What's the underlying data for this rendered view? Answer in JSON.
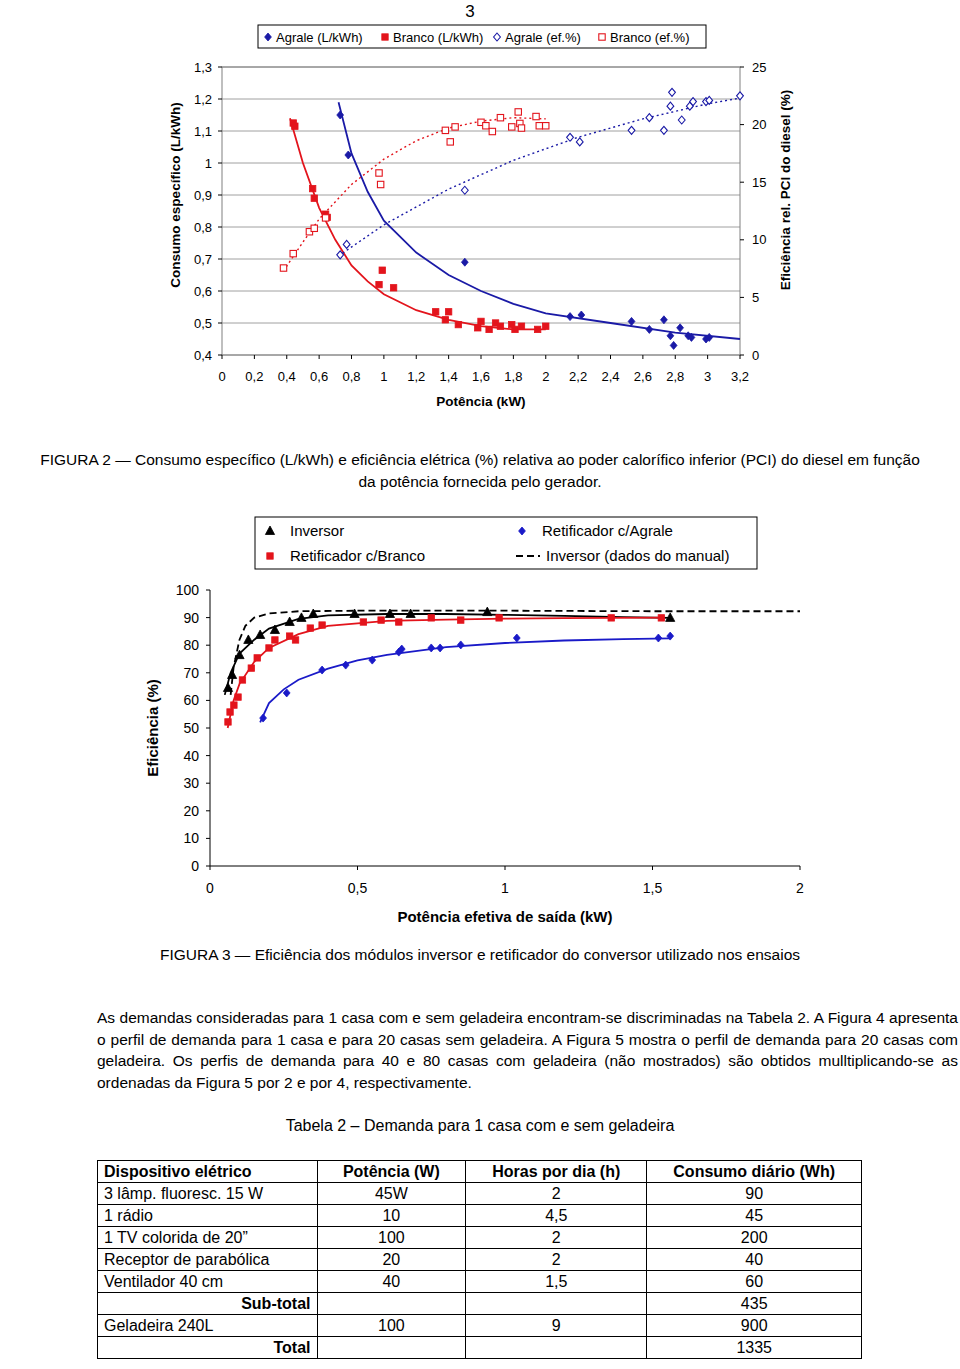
{
  "page_number": "3",
  "chart_data": [
    {
      "type": "scatter",
      "title": "FIGURA 2 — Consumo específico (L/kWh) e eficiência elétrica (%) relativa ao poder calorífico inferior (PCI) do diesel em função da potência fornecida pelo gerador.",
      "x_label": "Potência (kW)",
      "y_label": "Consumo específico (L/kWh)",
      "y2_label": "Eficiência rel. PCI do diesel (%)",
      "xlim": [
        0,
        3.2
      ],
      "xticks": [
        0,
        {
          "value": 0.2,
          "label": "0,2"
        },
        {
          "value": 0.4,
          "label": "0,4"
        },
        {
          "value": 0.6,
          "label": "0,6"
        },
        {
          "value": 0.8,
          "label": "0,8"
        },
        1,
        {
          "value": 1.2,
          "label": "1,2"
        },
        {
          "value": 1.4,
          "label": "1,4"
        },
        {
          "value": 1.6,
          "label": "1,6"
        },
        {
          "value": 1.8,
          "label": "1,8"
        },
        2,
        {
          "value": 2.2,
          "label": "2,2"
        },
        {
          "value": 2.4,
          "label": "2,4"
        },
        {
          "value": 2.6,
          "label": "2,6"
        },
        {
          "value": 2.8,
          "label": "2,8"
        },
        3,
        {
          "value": 3.2,
          "label": "3,2"
        }
      ],
      "ylim": [
        0.4,
        1.3
      ],
      "yticks": [
        {
          "value": 0.4,
          "label": "0,4"
        },
        {
          "value": 0.5,
          "label": "0,5"
        },
        {
          "value": 0.6,
          "label": "0,6"
        },
        {
          "value": 0.7,
          "label": "0,7"
        },
        {
          "value": 0.8,
          "label": "0,8"
        },
        {
          "value": 0.9,
          "label": "0,9"
        },
        1,
        {
          "value": 1.1,
          "label": "1,1"
        },
        {
          "value": 1.2,
          "label": "1,2"
        },
        {
          "value": 1.3,
          "label": "1,3"
        }
      ],
      "y2lim": [
        0,
        25
      ],
      "y2ticks": [
        0,
        5,
        10,
        15,
        20,
        25
      ],
      "grid": true,
      "legend": "top",
      "series": [
        {
          "name": "Agrale (L/kWh)",
          "type": "scatter",
          "color": "#1a1aa6",
          "marker": "diamond",
          "x": [
            0.73,
            0.78,
            1.5,
            2.15,
            2.22,
            2.53,
            2.64,
            2.73,
            2.77,
            2.79,
            2.83,
            2.88,
            2.9,
            2.99,
            3.01
          ],
          "values": [
            1.15,
            1.025,
            0.69,
            0.52,
            0.525,
            0.505,
            0.48,
            0.51,
            0.46,
            0.43,
            0.485,
            0.46,
            0.455,
            0.45,
            0.455
          ]
        },
        {
          "name": "Branco (L/kWh)",
          "type": "scatter",
          "color": "#e3141c",
          "marker": "square",
          "x": [
            0.44,
            0.45,
            0.56,
            0.57,
            0.64,
            0.65,
            0.97,
            0.99,
            1.06,
            1.32,
            1.4,
            1.38,
            1.46,
            1.58,
            1.6,
            1.65,
            1.69,
            1.72,
            1.79,
            1.81,
            1.85,
            1.95,
            2.0
          ],
          "values": [
            1.125,
            1.115,
            0.92,
            0.89,
            0.84,
            0.83,
            0.62,
            0.665,
            0.61,
            0.535,
            0.535,
            0.51,
            0.495,
            0.485,
            0.505,
            0.48,
            0.5,
            0.49,
            0.495,
            0.48,
            0.49,
            0.48,
            0.49
          ]
        },
        {
          "name": "Agrale (ef.%)",
          "type": "scatter",
          "color": "#1a1aa6",
          "marker": "diamond-open",
          "axis": "y2",
          "x": [
            0.73,
            0.77,
            1.5,
            2.15,
            2.21,
            2.53,
            2.64,
            2.73,
            2.77,
            2.78,
            2.84,
            2.89,
            2.91,
            2.99,
            3.01,
            3.2
          ],
          "values": [
            8.7,
            9.6,
            14.3,
            18.9,
            18.5,
            19.5,
            20.6,
            19.5,
            21.6,
            22.8,
            20.4,
            21.6,
            22.0,
            22.0,
            22.1,
            22.5
          ]
        },
        {
          "name": "Branco (ef.%)",
          "type": "scatter",
          "color": "#e3141c",
          "marker": "square-open",
          "axis": "y2",
          "x": [
            0.38,
            0.44,
            0.54,
            0.57,
            0.64,
            0.97,
            0.98,
            1.38,
            1.41,
            1.44,
            1.6,
            1.63,
            1.67,
            1.72,
            1.79,
            1.83,
            1.84,
            1.85,
            1.94,
            1.96,
            2.0
          ],
          "values": [
            7.55,
            8.8,
            10.7,
            11.0,
            11.9,
            15.8,
            14.8,
            19.5,
            18.5,
            19.8,
            20.2,
            19.9,
            19.4,
            20.6,
            19.8,
            21.1,
            20.1,
            19.7,
            20.7,
            19.9,
            19.9
          ]
        },
        {
          "type": "line",
          "color": "#1a1aa6",
          "line_style": "solid",
          "x": [
            0.72,
            0.8,
            0.9,
            1.0,
            1.2,
            1.4,
            1.6,
            1.8,
            2.0,
            2.4,
            2.8,
            3.2
          ],
          "values": [
            1.19,
            1.03,
            0.91,
            0.82,
            0.72,
            0.65,
            0.6,
            0.56,
            0.53,
            0.5,
            0.47,
            0.45
          ]
        },
        {
          "type": "line",
          "color": "#e3141c",
          "line_style": "solid",
          "x": [
            0.42,
            0.5,
            0.6,
            0.7,
            0.8,
            0.9,
            1.0,
            1.2,
            1.4,
            1.6,
            1.8,
            2.0
          ],
          "values": [
            1.14,
            1.0,
            0.86,
            0.76,
            0.68,
            0.63,
            0.59,
            0.54,
            0.51,
            0.49,
            0.48,
            0.48
          ]
        },
        {
          "type": "line",
          "color": "#1a1aa6",
          "line_style": "dotted",
          "axis": "y2",
          "x": [
            0.72,
            1.0,
            1.4,
            1.8,
            2.2,
            2.6,
            3.0,
            3.2
          ],
          "values": [
            8.6,
            11.3,
            14.4,
            16.9,
            18.9,
            20.5,
            21.8,
            22.3
          ]
        },
        {
          "type": "line",
          "color": "#e3141c",
          "line_style": "dotted",
          "axis": "y2",
          "x": [
            0.38,
            0.5,
            0.6,
            0.8,
            1.0,
            1.2,
            1.4,
            1.6,
            1.8,
            2.0
          ],
          "values": [
            7.3,
            9.8,
            11.8,
            14.8,
            17.0,
            18.6,
            19.7,
            20.3,
            20.6,
            20.5
          ]
        }
      ]
    },
    {
      "type": "scatter",
      "title": "FIGURA 3 — Eficiência dos módulos inversor e retificador do conversor utilizado nos ensaios",
      "x_label": "Potência efetiva de saída (kW)",
      "y_label": "Eficiência (%)",
      "xlim": [
        0,
        2
      ],
      "xticks": [
        0,
        {
          "value": 0.5,
          "label": "0,5"
        },
        1,
        {
          "value": 1.5,
          "label": "1,5"
        },
        2
      ],
      "ylim": [
        0,
        100
      ],
      "yticks": [
        0,
        10,
        20,
        30,
        40,
        50,
        60,
        70,
        80,
        90,
        100
      ],
      "grid": false,
      "legend": "top",
      "series": [
        {
          "name": "Inversor",
          "type": "scatter",
          "color": "#000000",
          "marker": "triangle",
          "x": [
            0.061,
            0.075,
            0.1,
            0.13,
            0.17,
            0.22,
            0.27,
            0.31,
            0.35,
            0.49,
            0.61,
            0.68,
            0.94,
            1.56
          ],
          "values": [
            64.5,
            69.2,
            76.4,
            81.9,
            83.7,
            85.5,
            88.4,
            89.9,
            91.3,
            91.3,
            91.3,
            91.3,
            92.0,
            89.9
          ]
        },
        {
          "name": "Retificador c/Agrale",
          "type": "scatter",
          "color": "#1a1ac8",
          "marker": "diamond",
          "x": [
            0.18,
            0.26,
            0.38,
            0.46,
            0.55,
            0.64,
            0.65,
            0.75,
            0.78,
            0.85,
            1.04,
            1.52,
            1.56
          ],
          "values": [
            53.6,
            62.7,
            71.0,
            72.8,
            74.6,
            77.5,
            78.6,
            79.0,
            79.0,
            80.1,
            82.6,
            82.6,
            83.3
          ]
        },
        {
          "name": "Retificador c/Branco",
          "type": "scatter",
          "color": "#e3141c",
          "marker": "square",
          "x": [
            0.061,
            0.068,
            0.081,
            0.095,
            0.11,
            0.14,
            0.16,
            0.2,
            0.22,
            0.27,
            0.29,
            0.34,
            0.38,
            0.52,
            0.58,
            0.64,
            0.75,
            0.85,
            0.98,
            1.36,
            1.53
          ],
          "values": [
            52.2,
            55.8,
            58.3,
            61.2,
            67.4,
            71.7,
            75.4,
            79.0,
            81.9,
            83.3,
            81.9,
            86.2,
            87.3,
            88.4,
            89.1,
            88.4,
            89.9,
            89.1,
            89.9,
            89.9,
            89.9
          ]
        },
        {
          "name": "Inversor (dados do manual)",
          "type": "line",
          "color": "#000000",
          "line_style": "dashed",
          "x": [
            0.07,
            0.08,
            0.1,
            0.12,
            0.15,
            0.2,
            0.3,
            0.5,
            1.0,
            1.5,
            2.0
          ],
          "values": [
            62,
            72,
            82,
            87,
            90,
            91.5,
            92.3,
            92.5,
            92.5,
            92.3,
            92.3
          ]
        },
        {
          "type": "line",
          "color": "#000000",
          "line_style": "solid",
          "x": [
            0.05,
            0.07,
            0.1,
            0.15,
            0.2,
            0.3,
            0.4,
            0.6,
            0.8,
            1.0,
            1.2,
            1.4,
            1.56
          ],
          "values": [
            62,
            70,
            77,
            82,
            86,
            89.5,
            90.8,
            91.3,
            91.3,
            91.0,
            90.6,
            90.2,
            89.9
          ]
        },
        {
          "type": "line",
          "color": "#1a1ac8",
          "line_style": "solid",
          "x": [
            0.17,
            0.2,
            0.25,
            0.3,
            0.4,
            0.5,
            0.6,
            0.8,
            1.0,
            1.2,
            1.4,
            1.56
          ],
          "values": [
            52,
            59,
            64,
            67.5,
            71.5,
            74.5,
            76.5,
            79.3,
            80.8,
            81.7,
            82.2,
            82.5
          ]
        },
        {
          "type": "line",
          "color": "#e3141c",
          "line_style": "solid",
          "x": [
            0.06,
            0.08,
            0.1,
            0.15,
            0.2,
            0.3,
            0.4,
            0.6,
            0.8,
            1.0,
            1.2,
            1.53
          ],
          "values": [
            50,
            60,
            66,
            74,
            79,
            84,
            87,
            88.8,
            89.3,
            89.6,
            89.8,
            90
          ]
        }
      ]
    }
  ],
  "paragraph": "As demandas consideradas para 1 casa com e sem geladeira encontram-se discriminadas na Tabela 2. A Figura 4 apresenta o perfil de demanda para 1 casa e para 20 casas sem geladeira. A Figura 5 mostra o perfil de demanda para 20 casas com geladeira. Os perfis de demanda para 40 e 80 casas com geladeira (não mostrados) são obtidos mulltiplicando-se as ordenadas da Figura 5 por 2 e por 4, respectivamente.",
  "table": {
    "title": "Tabela 2 – Demanda para 1 casa com e sem geladeira",
    "header": [
      "Dispositivo elétrico",
      "Potência (W)",
      "Horas por dia (h)",
      "Consumo diário (Wh)"
    ],
    "rows": [
      [
        "3 lâmp. fluoresc. 15 W",
        "45W",
        "2",
        "90"
      ],
      [
        "1 rádio",
        "10",
        "4,5",
        "45"
      ],
      [
        "1 TV colorida de 20”",
        "100",
        "2",
        "200"
      ],
      [
        "Receptor de parabólica",
        "20",
        "2",
        "40"
      ],
      [
        "Ventilador 40 cm",
        "40",
        "1,5",
        "60"
      ],
      [
        "Sub-total",
        null,
        null,
        "435"
      ],
      [
        "Geladeira 240L",
        "100",
        "9",
        "900"
      ],
      [
        "Total",
        null,
        null,
        "1335"
      ]
    ]
  }
}
